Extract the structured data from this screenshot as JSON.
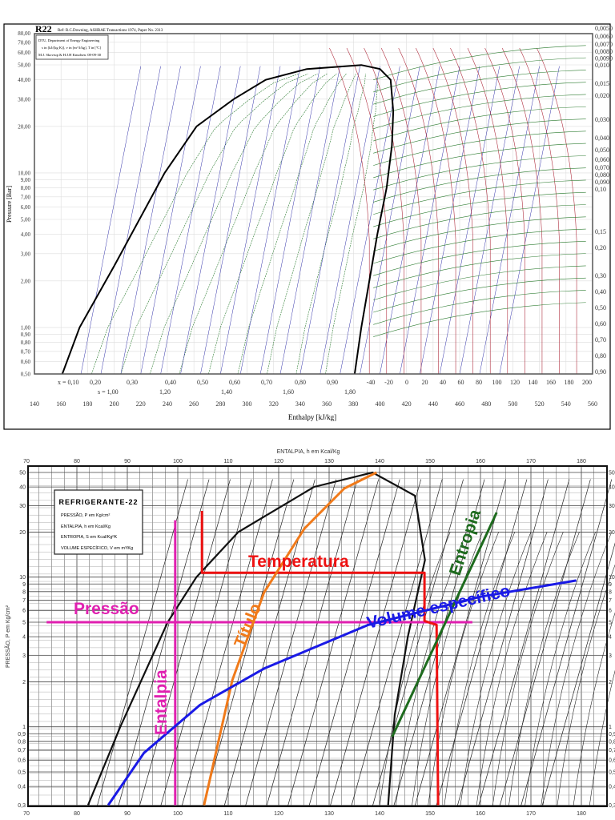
{
  "chart_data": [
    {
      "type": "line",
      "title": "R22",
      "subtitle": "Ref: R.C.Downing, ASHRAE Transactions 1974, Paper No. 2313",
      "legend_box": [
        "DTU, Department of Energy Engineering",
        "s in [kJ/(kg K)], v in [m^3/kg], T in [ºC]",
        "M.J. Skovrup & H.J.H Knudsen. 08-09-30"
      ],
      "xlabel": "Enthalpy [kJ/kg]",
      "ylabel": "Pressure [Bar]",
      "xlim": [
        140,
        560
      ],
      "ylim": [
        0.5,
        80
      ],
      "yscale": "log",
      "grid": true,
      "x_ticks": [
        "140",
        "160",
        "180",
        "200",
        "220",
        "240",
        "260",
        "280",
        "300",
        "320",
        "340",
        "360",
        "380",
        "400",
        "420",
        "440",
        "460",
        "480",
        "500",
        "520",
        "540",
        "560"
      ],
      "y_ticks": [
        "0,50",
        "0,60",
        "0,70",
        "0,80",
        "0,90",
        "1,00",
        "2,00",
        "3,00",
        "4,00",
        "5,00",
        "6,00",
        "7,00",
        "8,00",
        "9,00",
        "10,00",
        "20,00",
        "30,00",
        "40,00",
        "50,00",
        "60,00",
        "70,00",
        "80,00"
      ],
      "y_tick_values": [
        0.5,
        0.6,
        0.7,
        0.8,
        0.9,
        1,
        2,
        3,
        4,
        5,
        6,
        7,
        8,
        9,
        10,
        20,
        30,
        40,
        50,
        60,
        70,
        80
      ],
      "quality_labels": [
        "x = 0,10",
        "0,20",
        "0,30",
        "0,40",
        "0,50",
        "0,60",
        "0,70",
        "0,80",
        "0,90"
      ],
      "entropy_labels": [
        "s = 1,00",
        "1,20",
        "1,40",
        "1,60",
        "1,80"
      ],
      "temperature_labels": [
        "-40",
        "-20",
        "0",
        "20",
        "40",
        "60",
        "80",
        "100",
        "120",
        "140",
        "160",
        "180",
        "200"
      ],
      "volume_labels": [
        "0,0050",
        "0,0060",
        "0,0070",
        "0,0080",
        "0,0090",
        "0,010",
        "0,015",
        "0,020",
        "0,030",
        "0,040",
        "0,050",
        "0,060",
        "0,070",
        "0,080",
        "0,090",
        "0,10",
        "0,15",
        "0,20",
        "0,30",
        "0,40",
        "0,50",
        "0,60",
        "0,70",
        "0,80",
        "0,90"
      ],
      "saturated_liquid": [
        [
          161,
          0.5
        ],
        [
          174,
          1
        ],
        [
          200,
          2.5
        ],
        [
          238,
          10
        ],
        [
          262,
          20
        ],
        [
          290,
          30
        ],
        [
          314,
          40
        ],
        [
          345,
          47
        ],
        [
          386,
          49.9
        ]
      ],
      "saturated_vapor": [
        [
          386,
          49.9
        ],
        [
          400,
          47
        ],
        [
          408,
          40
        ],
        [
          410,
          25
        ],
        [
          409,
          15
        ],
        [
          405,
          8
        ],
        [
          398,
          4
        ],
        [
          392,
          2
        ],
        [
          386,
          1
        ],
        [
          381,
          0.5
        ]
      ],
      "colors": {
        "dome": "#000000",
        "quality": "#2e7d32",
        "entropy": "#3333aa",
        "isotherm": "#b03040",
        "volume": "#2e7d32",
        "grid": "#cccccc"
      }
    },
    {
      "type": "line",
      "title": "ENTALPIA, h em Kcal/Kg",
      "legend_box": [
        "REFRIGERANTE-22",
        "PRESSÃO, P em Kg/cm²",
        "ENTALPIA, h em Kcal/Kg",
        "ENTROPIA, S em Kcal/KgºK",
        "VOLUME ESPECÍFICO, V em m³/Kg"
      ],
      "xlabel": "",
      "ylabel": "PRESSÃO, P em Kg/cm²",
      "xlim": [
        70,
        185
      ],
      "ylim": [
        0.3,
        50
      ],
      "yscale": "log",
      "grid": true,
      "x_ticks": [
        "70",
        "80",
        "90",
        "100",
        "110",
        "120",
        "130",
        "140",
        "150",
        "160",
        "170",
        "180"
      ],
      "y_ticks": [
        "0,3",
        "0,4",
        "0,5",
        "0,6",
        "0,7",
        "0,8",
        "0,9",
        "1",
        "2",
        "3",
        "4",
        "5",
        "6",
        "7",
        "8",
        "9",
        "10",
        "20",
        "30",
        "40",
        "50"
      ],
      "y_tick_values": [
        0.3,
        0.4,
        0.5,
        0.6,
        0.7,
        0.8,
        0.9,
        1,
        2,
        3,
        4,
        5,
        6,
        7,
        8,
        9,
        10,
        20,
        30,
        40,
        50
      ],
      "saturation_dome": [
        [
          82.2,
          0.3
        ],
        [
          88.6,
          1
        ],
        [
          98,
          5
        ],
        [
          103.7,
          10
        ],
        [
          112,
          20
        ],
        [
          127,
          40
        ],
        [
          138.6,
          50
        ],
        [
          147,
          35
        ],
        [
          149,
          13
        ],
        [
          145.6,
          4
        ],
        [
          143,
          1.2
        ],
        [
          141.7,
          0.3
        ]
      ],
      "annotations": [
        {
          "label": "Pressão",
          "color": "#e020b0",
          "points": [
            [
              74,
              5
            ],
            [
              158.4,
              5
            ]
          ]
        },
        {
          "label": "Entalpia",
          "color": "#e020b0",
          "points": [
            [
              99.5,
              24
            ],
            [
              99.5,
              0.3
            ]
          ]
        },
        {
          "label": "Temperatura",
          "color": "#ee1111",
          "points": [
            [
              104.8,
              27.7
            ],
            [
              104.8,
              10.7
            ],
            [
              148.9,
              10.7
            ],
            [
              148.9,
              5.1
            ],
            [
              151.3,
              4.8
            ],
            [
              151.6,
              0.3
            ]
          ]
        },
        {
          "label": "Título",
          "color": "#f07a1a",
          "points": [
            [
              105.2,
              0.3
            ],
            [
              110.8,
              2.04
            ],
            [
              117.1,
              7.9
            ],
            [
              125.1,
              21.1
            ],
            [
              133,
              39.1
            ],
            [
              139.4,
              50
            ]
          ]
        },
        {
          "label": "Volume específico",
          "color": "#1a1ae6",
          "points": [
            [
              86.2,
              0.3
            ],
            [
              93.3,
              0.67
            ],
            [
              104.4,
              1.4
            ],
            [
              117.1,
              2.45
            ],
            [
              137.8,
              4.8
            ],
            [
              160,
              7.4
            ],
            [
              179,
              9.5
            ]
          ]
        },
        {
          "label": "Entropia",
          "color": "#1e6b1e",
          "points": [
            [
              142.5,
              0.86
            ],
            [
              163.2,
              27
            ]
          ]
        }
      ]
    }
  ]
}
